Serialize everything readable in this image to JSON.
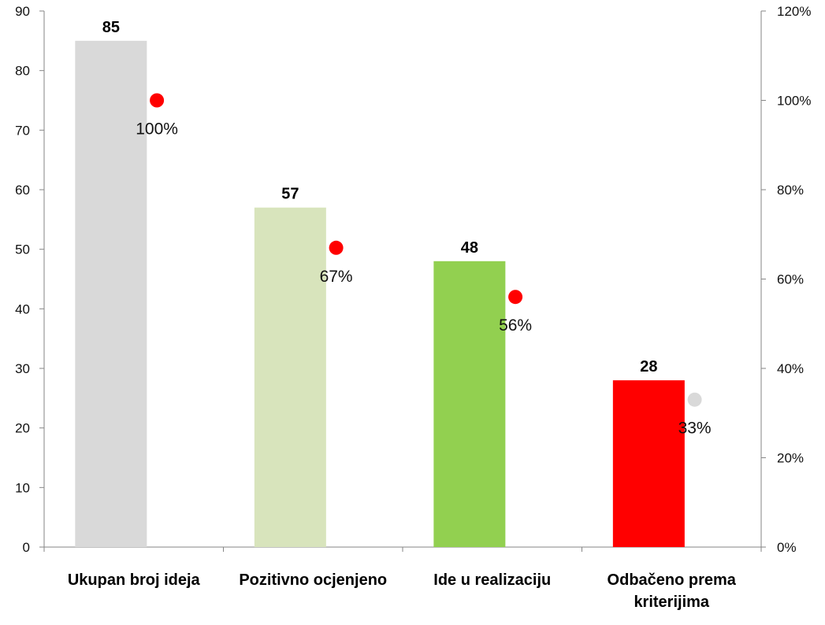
{
  "chart_data": {
    "type": "bar",
    "categories": [
      [
        "Ukupan broj ideja"
      ],
      [
        "Pozitivno ocjenjeno"
      ],
      [
        "Ide u realizaciju"
      ],
      [
        "Odbačeno prema",
        "kriterijima"
      ]
    ],
    "series": [
      {
        "type": "bar",
        "axis": "left",
        "values": [
          85,
          57,
          48,
          28
        ],
        "colors": [
          "#d9d9d9",
          "#d8e4bc",
          "#92d050",
          "#ff0000"
        ],
        "data_labels": [
          "85",
          "57",
          "48",
          "28"
        ]
      },
      {
        "type": "scatter",
        "axis": "right",
        "values": [
          100,
          67,
          56,
          33
        ],
        "colors": [
          "#ff0000",
          "#ff0000",
          "#ff0000",
          "#d9d9d9"
        ],
        "data_labels": [
          "100%",
          "67%",
          "56%",
          "33%"
        ]
      }
    ],
    "ylim_left": [
      0,
      90
    ],
    "yticks_left": [
      "0",
      "10",
      "20",
      "30",
      "40",
      "50",
      "60",
      "70",
      "80",
      "90"
    ],
    "ylim_right": [
      0,
      120
    ],
    "yticks_right": [
      "0%",
      "20%",
      "40%",
      "60%",
      "80%",
      "100%",
      "120%"
    ],
    "title": "",
    "xlabel": "",
    "ylabel": "",
    "grid": false,
    "legend": "none"
  }
}
